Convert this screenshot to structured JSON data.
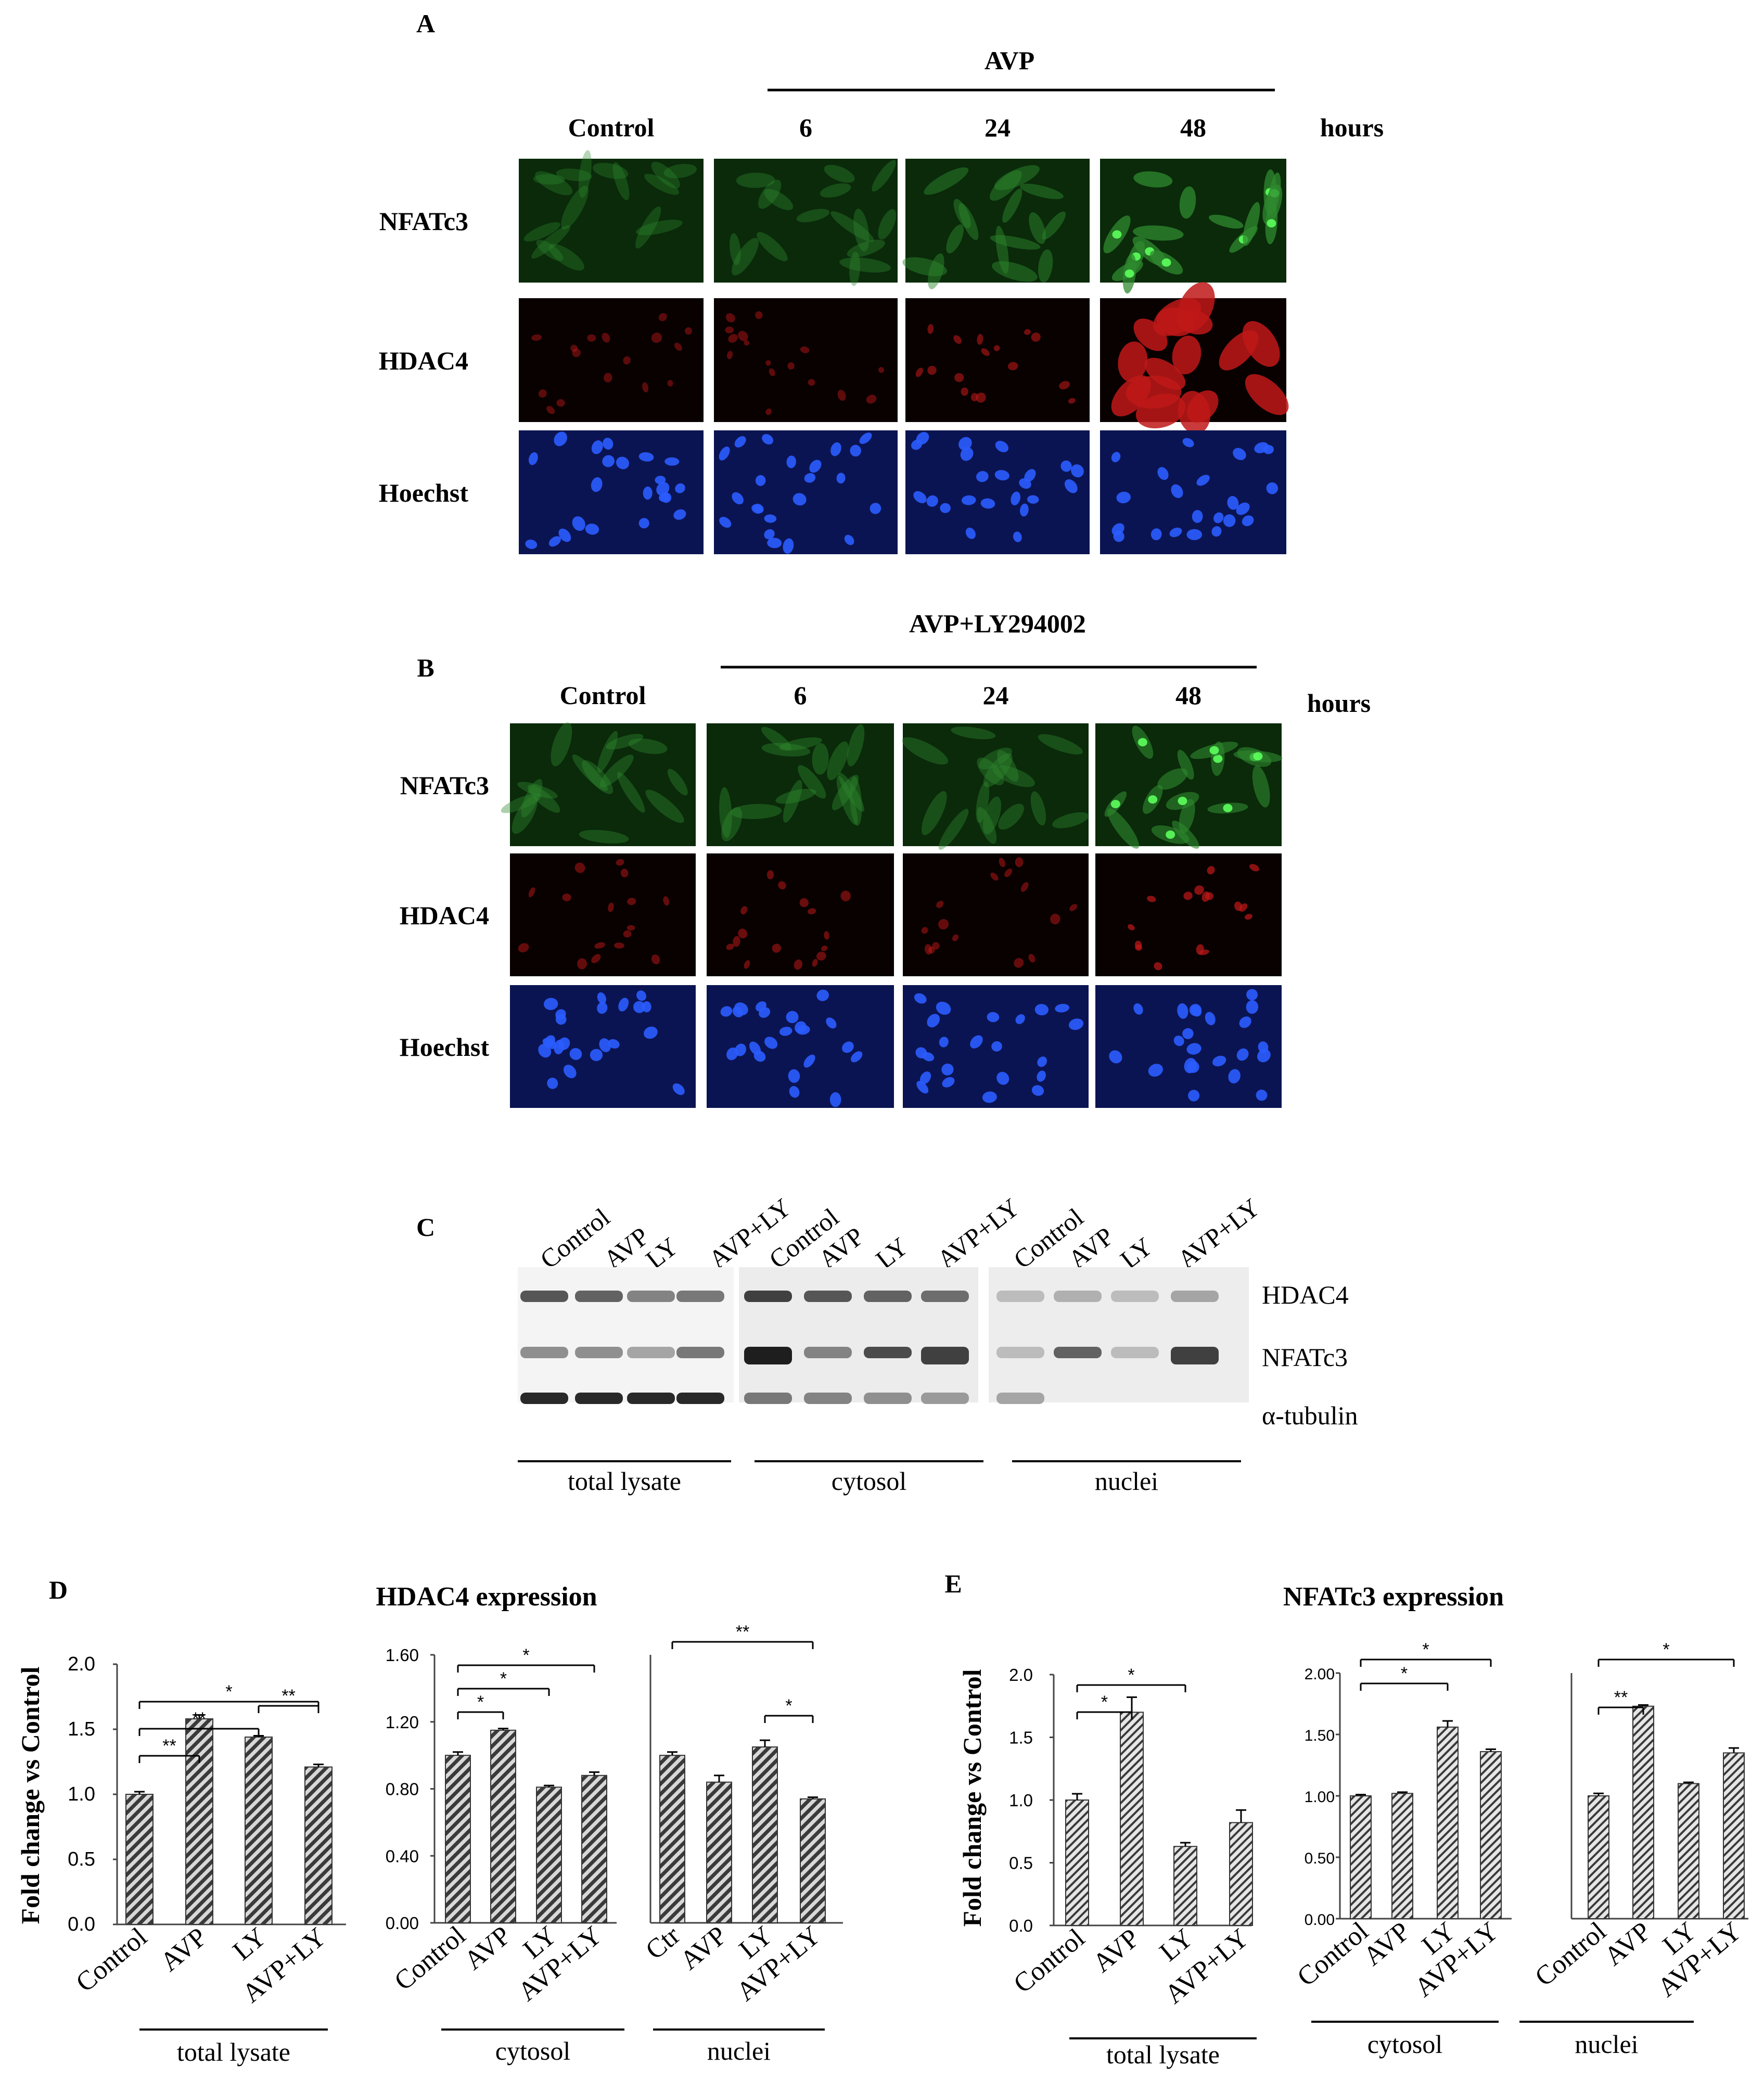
{
  "panels": {
    "A": {
      "letter": "A",
      "treatment": "AVP",
      "columns": [
        "Control",
        "6",
        "24",
        "48"
      ],
      "unit": "hours",
      "rows": [
        "NFATc3",
        "HDAC4",
        "Hoechst"
      ]
    },
    "B": {
      "letter": "B",
      "treatment": "AVP+LY294002",
      "columns": [
        "Control",
        "6",
        "24",
        "48"
      ],
      "unit": "hours",
      "rows": [
        "NFATc3",
        "HDAC4",
        "Hoechst"
      ]
    },
    "C": {
      "letter": "C",
      "lanes": [
        "Control",
        "AVP",
        "LY",
        "AVP+LY",
        "Control",
        "AVP",
        "LY",
        "AVP+LY",
        "Control",
        "AVP",
        "LY",
        "AVP+LY"
      ],
      "bands": [
        "HDAC4",
        "NFATc3",
        "α-tubulin"
      ],
      "groups": [
        "total lysate",
        "cytosol",
        "nuclei"
      ]
    },
    "D": {
      "letter": "D",
      "title": "HDAC4 expression",
      "ylabel": "Fold change vs Control"
    },
    "E": {
      "letter": "E",
      "title": "NFATc3 expression",
      "ylabel": "Fold change vs Control"
    }
  },
  "colors": {
    "green_channel": "#2f8a2f",
    "red_channel": "#c01818",
    "blue_channel": "#1530a8",
    "bar_fill": "#b0b0b0"
  },
  "chart_data": [
    {
      "type": "bar",
      "panel": "D",
      "group": "total lysate",
      "categories": [
        "Control",
        "AVP",
        "LY",
        "AVP+LY"
      ],
      "values": [
        1.0,
        1.58,
        1.44,
        1.21
      ],
      "errors": [
        0.02,
        0.03,
        0.01,
        0.02
      ],
      "ylim": [
        0,
        2.0
      ],
      "yticks": [
        "0.0",
        "0.5",
        "1.0",
        "1.5",
        "2.0"
      ],
      "significance": [
        {
          "from": 0,
          "to": 1,
          "label": "**"
        },
        {
          "from": 0,
          "to": 2,
          "label": "**"
        },
        {
          "from": 0,
          "to": 3,
          "label": "*"
        },
        {
          "from": 2,
          "to": 3,
          "label": "**"
        }
      ]
    },
    {
      "type": "bar",
      "panel": "D",
      "group": "cytosol",
      "categories": [
        "Control",
        "AVP",
        "LY",
        "AVP+LY"
      ],
      "values": [
        1.0,
        1.15,
        0.81,
        0.88
      ],
      "errors": [
        0.02,
        0.01,
        0.01,
        0.02
      ],
      "ylim": [
        0,
        1.6
      ],
      "yticks": [
        "0.00",
        "0.40",
        "0.80",
        "1.20",
        "1.60"
      ],
      "significance": [
        {
          "from": 0,
          "to": 1,
          "label": "*"
        },
        {
          "from": 0,
          "to": 2,
          "label": "*"
        },
        {
          "from": 0,
          "to": 3,
          "label": "*"
        }
      ]
    },
    {
      "type": "bar",
      "panel": "D",
      "group": "nuclei",
      "categories": [
        "Ctr",
        "AVP",
        "LY",
        "AVP+LY"
      ],
      "values": [
        1.0,
        0.84,
        1.05,
        0.74
      ],
      "errors": [
        0.02,
        0.04,
        0.04,
        0.01
      ],
      "ylim": [
        0,
        1.6
      ],
      "significance": [
        {
          "from": 0,
          "to": 3,
          "label": "**"
        },
        {
          "from": 2,
          "to": 3,
          "label": "*"
        }
      ]
    },
    {
      "type": "bar",
      "panel": "E",
      "group": "total lysate",
      "categories": [
        "Control",
        "AVP",
        "LY",
        "AVP+LY"
      ],
      "values": [
        1.0,
        1.7,
        0.63,
        0.82
      ],
      "errors": [
        0.05,
        0.12,
        0.03,
        0.1
      ],
      "ylim": [
        0,
        2.0
      ],
      "yticks": [
        "0.0",
        "0.5",
        "1.0",
        "1.5",
        "2.0"
      ],
      "significance": [
        {
          "from": 0,
          "to": 1,
          "label": "*"
        },
        {
          "from": 0,
          "to": 2,
          "label": "*"
        }
      ]
    },
    {
      "type": "bar",
      "panel": "E",
      "group": "cytosol",
      "categories": [
        "Control",
        "AVP",
        "LY",
        "AVP+LY"
      ],
      "values": [
        1.0,
        1.02,
        1.56,
        1.36
      ],
      "errors": [
        0.01,
        0.01,
        0.05,
        0.02
      ],
      "ylim": [
        0,
        2.0
      ],
      "yticks": [
        "0.00",
        "0.50",
        "1.00",
        "1.50",
        "2.00"
      ],
      "significance": [
        {
          "from": 0,
          "to": 2,
          "label": "*"
        },
        {
          "from": 0,
          "to": 3,
          "label": "*"
        }
      ]
    },
    {
      "type": "bar",
      "panel": "E",
      "group": "nuclei",
      "categories": [
        "Control",
        "AVP",
        "LY",
        "AVP+LY"
      ],
      "values": [
        1.0,
        1.73,
        1.1,
        1.35
      ],
      "errors": [
        0.02,
        0.01,
        0.01,
        0.04
      ],
      "ylim": [
        0,
        2.0
      ],
      "significance": [
        {
          "from": 0,
          "to": 1,
          "label": "**"
        },
        {
          "from": 0,
          "to": 3,
          "label": "*"
        }
      ]
    }
  ]
}
